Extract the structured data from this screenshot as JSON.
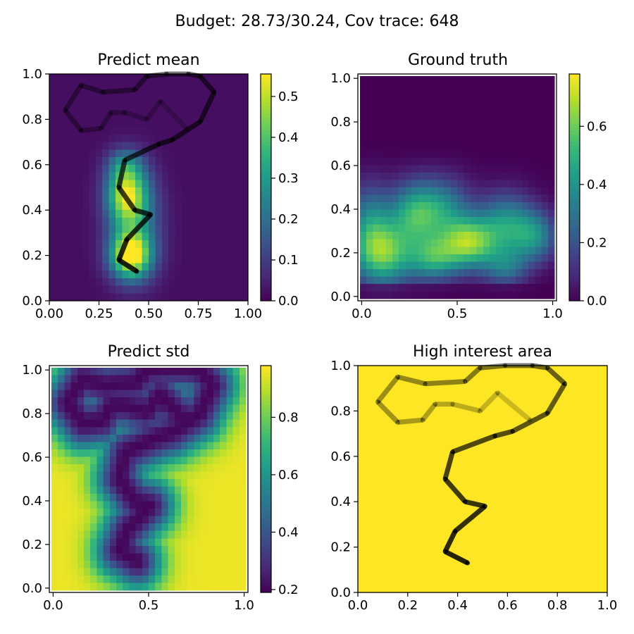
{
  "figure": {
    "suptitle": "Budget: 28.73/30.24,  Cov trace: 648"
  },
  "colormap": {
    "name": "viridis",
    "stops": [
      "#440154",
      "#482878",
      "#3e4989",
      "#31688e",
      "#26828e",
      "#1f9e89",
      "#35b779",
      "#6ece58",
      "#b5de2b",
      "#fde725"
    ]
  },
  "path_color": "#000000",
  "chart_data": [
    {
      "type": "heatmap",
      "title": "Predict mean",
      "grid_size": 30,
      "xlim": [
        0,
        1
      ],
      "ylim": [
        0,
        1
      ],
      "xticks": [
        0.0,
        0.25,
        0.5,
        0.75,
        1.0
      ],
      "xtick_labels": [
        "0.00",
        "0.25",
        "0.50",
        "0.75",
        "1.00"
      ],
      "yticks": [
        0.0,
        0.2,
        0.4,
        0.6,
        0.8,
        1.0
      ],
      "ytick_labels": [
        "0.0",
        "0.2",
        "0.4",
        "0.6",
        "0.8",
        "1.0"
      ],
      "colorbar": {
        "min": 0.0,
        "max": 0.555,
        "ticks": [
          0.0,
          0.1,
          0.2,
          0.3,
          0.4,
          0.5
        ],
        "tick_labels": [
          "0.0",
          "0.1",
          "0.2",
          "0.3",
          "0.4",
          "0.5"
        ]
      },
      "field": {
        "base": 0.02,
        "blobs": [
          {
            "x": 0.39,
            "y": 0.47,
            "sx": 0.07,
            "sy": 0.09,
            "amp": 0.42
          },
          {
            "x": 0.41,
            "y": 0.2,
            "sx": 0.07,
            "sy": 0.07,
            "amp": 0.5
          },
          {
            "x": 0.43,
            "y": 0.34,
            "sx": 0.09,
            "sy": 0.15,
            "amp": 0.2
          },
          {
            "x": 0.38,
            "y": 0.6,
            "sx": 0.06,
            "sy": 0.05,
            "amp": 0.15
          }
        ]
      },
      "path": {
        "x": [
          0.44,
          0.35,
          0.39,
          0.51,
          0.43,
          0.35,
          0.38,
          0.55,
          0.62,
          0.76,
          0.83,
          0.76,
          0.7,
          0.59,
          0.49,
          0.43,
          0.27,
          0.16,
          0.08,
          0.16,
          0.26,
          0.31,
          0.38,
          0.49,
          0.56,
          0.69
        ],
        "y": [
          0.13,
          0.18,
          0.27,
          0.38,
          0.4,
          0.5,
          0.62,
          0.69,
          0.71,
          0.79,
          0.92,
          0.99,
          1.0,
          1.0,
          0.99,
          0.93,
          0.92,
          0.95,
          0.84,
          0.75,
          0.76,
          0.83,
          0.83,
          0.8,
          0.88,
          0.76
        ]
      }
    },
    {
      "type": "heatmap",
      "title": "Ground truth",
      "grid_size": 30,
      "xlim": [
        -0.02,
        1.02
      ],
      "ylim": [
        -0.02,
        1.02
      ],
      "xticks": [
        0.0,
        0.5,
        1.0
      ],
      "xtick_labels": [
        "0.0",
        "0.5",
        "1.0"
      ],
      "yticks": [
        0.0,
        0.2,
        0.4,
        0.6,
        0.8,
        1.0
      ],
      "ytick_labels": [
        "0.0",
        "0.2",
        "0.4",
        "0.6",
        "0.8",
        "1.0"
      ],
      "colorbar": {
        "min": 0.0,
        "max": 0.78,
        "ticks": [
          0.0,
          0.2,
          0.4,
          0.6
        ],
        "tick_labels": [
          "0.0",
          "0.2",
          "0.4",
          "0.6"
        ]
      },
      "field": {
        "base": 0.0,
        "blobs": [
          {
            "x": 0.12,
            "y": 0.2,
            "sx": 0.11,
            "sy": 0.1,
            "amp": 0.55
          },
          {
            "x": 0.28,
            "y": 0.38,
            "sx": 0.09,
            "sy": 0.1,
            "amp": 0.42
          },
          {
            "x": 0.56,
            "y": 0.25,
            "sx": 0.1,
            "sy": 0.08,
            "amp": 0.58
          },
          {
            "x": 0.38,
            "y": 0.18,
            "sx": 0.09,
            "sy": 0.07,
            "amp": 0.4
          },
          {
            "x": 0.43,
            "y": 0.4,
            "sx": 0.1,
            "sy": 0.1,
            "amp": 0.32
          },
          {
            "x": 0.75,
            "y": 0.33,
            "sx": 0.1,
            "sy": 0.1,
            "amp": 0.38
          },
          {
            "x": 0.9,
            "y": 0.28,
            "sx": 0.08,
            "sy": 0.08,
            "amp": 0.33
          },
          {
            "x": 0.75,
            "y": 0.14,
            "sx": 0.08,
            "sy": 0.06,
            "amp": 0.25
          },
          {
            "x": 0.05,
            "y": 0.35,
            "sx": 0.08,
            "sy": 0.12,
            "amp": 0.3
          }
        ]
      }
    },
    {
      "type": "heatmap",
      "title": "Predict std",
      "grid_size": 30,
      "xlim": [
        -0.02,
        1.02
      ],
      "ylim": [
        -0.02,
        1.02
      ],
      "xticks": [
        0.0,
        0.5,
        1.0
      ],
      "xtick_labels": [
        "0.0",
        "0.5",
        "1.0"
      ],
      "yticks": [
        0.0,
        0.2,
        0.4,
        0.6,
        0.8,
        1.0
      ],
      "ytick_labels": [
        "0.0",
        "0.2",
        "0.4",
        "0.6",
        "0.8",
        "1.0"
      ],
      "colorbar": {
        "min": 0.19,
        "max": 0.98,
        "ticks": [
          0.2,
          0.4,
          0.6,
          0.8
        ],
        "tick_labels": [
          "0.2",
          "0.4",
          "0.6",
          "0.8"
        ]
      }
    },
    {
      "type": "heatmap",
      "title": "High interest area",
      "xlim": [
        0,
        1
      ],
      "ylim": [
        0,
        1
      ],
      "xticks": [
        0.0,
        0.2,
        0.4,
        0.6,
        0.8,
        1.0
      ],
      "xtick_labels": [
        "0.0",
        "0.2",
        "0.4",
        "0.6",
        "0.8",
        "1.0"
      ],
      "yticks": [
        0.0,
        0.2,
        0.4,
        0.6,
        0.8,
        1.0
      ],
      "ytick_labels": [
        "0.0",
        "0.2",
        "0.4",
        "0.6",
        "0.8",
        "1.0"
      ],
      "fill_value": 1.0
    }
  ]
}
